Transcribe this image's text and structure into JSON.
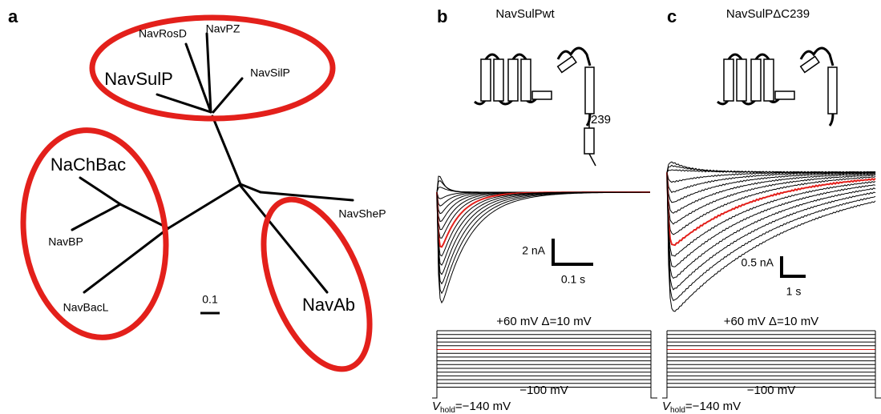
{
  "panels": [
    {
      "label": "a",
      "leaves": [
        "NavRosD",
        "NavPZ",
        "NavSulP",
        "NavSilP",
        "NaChBac",
        "NavSheP",
        "NavBP",
        "NavBacL",
        "NavAb"
      ],
      "scale": "0.1"
    },
    {
      "label": "b",
      "construct": "NavSulPwt",
      "residue": "239",
      "current_scale": "2 nA",
      "time_scale": "0.1 s",
      "protocol": {
        "step": "+60 mV Δ=10 mV",
        "low": "−100 mV",
        "hold_symbol": "V",
        "hold_subscript": "hold",
        "hold_value": "=−140 mV"
      }
    },
    {
      "label": "c",
      "construct": "NavSulPΔC239",
      "current_scale": "0.5 nA",
      "time_scale": "1 s",
      "protocol": {
        "step": "+60 mV Δ=10 mV",
        "low": "−100 mV",
        "hold_symbol": "V",
        "hold_subscript": "hold",
        "hold_value": "=−140 mV"
      }
    }
  ]
}
